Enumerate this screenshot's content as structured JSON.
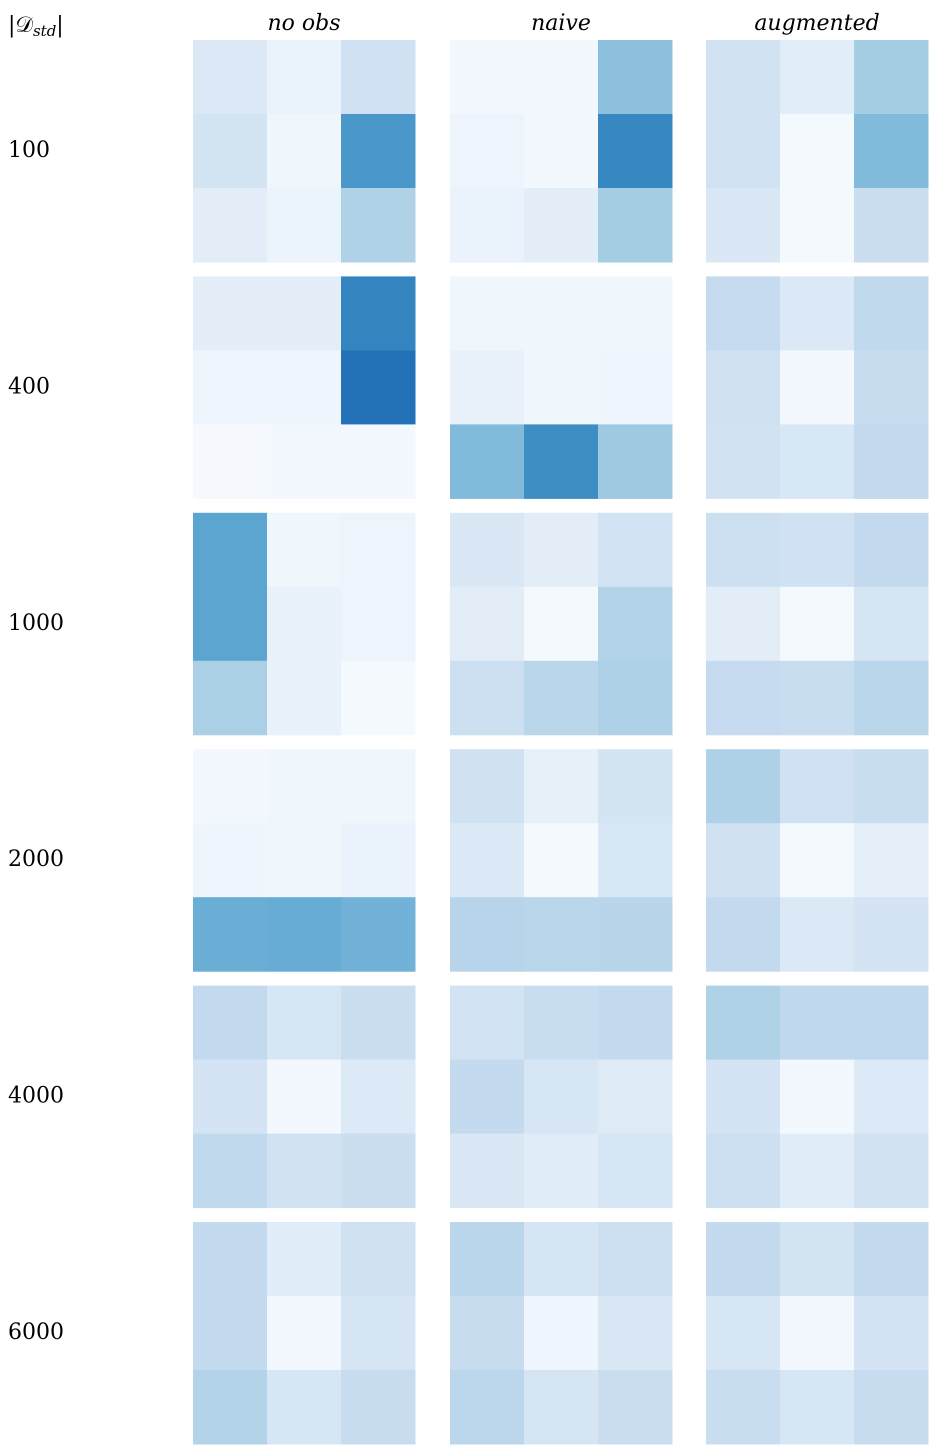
{
  "header": {
    "open": "|𝒟",
    "subscript": "std",
    "close": "|"
  },
  "columns": [
    "no obs",
    "naive",
    "augmented"
  ],
  "rows": [
    {
      "label": "100",
      "panels": [
        [
          [
            "#dce8f5",
            "#eaf2fb",
            "#cfe1f2"
          ],
          [
            "#d3e4f3",
            "#eff6fc",
            "#4a98c9"
          ],
          [
            "#e2edf8",
            "#ebf3fb",
            "#b0d2e7"
          ]
        ],
        [
          [
            "#f2f8fd",
            "#f2f8fd",
            "#8dc0dd"
          ],
          [
            "#edf4fc",
            "#f2f8fd",
            "#3787c0"
          ],
          [
            "#eaf2fb",
            "#e4eef9",
            "#a5cde3"
          ]
        ],
        [
          [
            "#d1e3f3",
            "#e1edf8",
            "#a5cde3"
          ],
          [
            "#d1e3f3",
            "#f4f9fe",
            "#81badb"
          ],
          [
            "#dae8f6",
            "#f4f9fe",
            "#cadef0"
          ]
        ]
      ]
    },
    {
      "label": "400",
      "panels": [
        [
          [
            "#e3eef8",
            "#e3eef8",
            "#3484bf"
          ],
          [
            "#eef5fc",
            "#eef5fc",
            "#2372b8"
          ],
          [
            "#f5f9fe",
            "#f3f8fe",
            "#f3f8fe"
          ]
        ],
        [
          [
            "#eff6fc",
            "#eff6fc",
            "#eff6fc"
          ],
          [
            "#e9f2fa",
            "#eff6fc",
            "#eef5fc"
          ],
          [
            "#81badb",
            "#3e8ec4",
            "#9dc9e1"
          ]
        ],
        [
          [
            "#c6dbef",
            "#dbe9f6",
            "#c1d9ed"
          ],
          [
            "#d0e2f2",
            "#f3f8fe",
            "#c7dcef"
          ],
          [
            "#d1e3f3",
            "#d8e7f5",
            "#c2d9ee"
          ]
        ]
      ]
    },
    {
      "label": "1000",
      "panels": [
        [
          [
            "#5da5d1",
            "#eff6fc",
            "#edf4fc"
          ],
          [
            "#5da5d1",
            "#e9f2fa",
            "#edf4fc"
          ],
          [
            "#abd0e6",
            "#e9f2fa",
            "#f4f9fe"
          ]
        ],
        [
          [
            "#dae8f6",
            "#e2edf8",
            "#d2e3f3"
          ],
          [
            "#e2edf8",
            "#f4f9fe",
            "#b2d2e8"
          ],
          [
            "#cde0f1",
            "#b9d6ea",
            "#aed1e7"
          ]
        ],
        [
          [
            "#cde0f1",
            "#cfe1f2",
            "#c3daee"
          ],
          [
            "#e2edf8",
            "#f4f9fe",
            "#d5e5f4"
          ],
          [
            "#c6dbef",
            "#c9ddf0",
            "#bad6eb"
          ]
        ]
      ]
    },
    {
      "label": "2000",
      "panels": [
        [
          [
            "#f3f8fe",
            "#eff6fc",
            "#eff6fc"
          ],
          [
            "#eef5fc",
            "#eff6fc",
            "#eaf2fb"
          ],
          [
            "#6aaed6",
            "#67acd5",
            "#72b1d8"
          ]
        ],
        [
          [
            "#d0e2f2",
            "#e6f0f9",
            "#d3e4f3"
          ],
          [
            "#dbe9f6",
            "#f4f9fe",
            "#d8e7f5"
          ],
          [
            "#b7d4ea",
            "#bad6eb",
            "#b8d5ea"
          ]
        ],
        [
          [
            "#afd1e7",
            "#cfe1f2",
            "#c9ddf0"
          ],
          [
            "#d0e2f2",
            "#f4f9fe",
            "#e4eff9"
          ],
          [
            "#c3daee",
            "#dbe9f6",
            "#d4e4f4"
          ]
        ]
      ]
    },
    {
      "label": "4000",
      "panels": [
        [
          [
            "#c2d9ee",
            "#d6e6f4",
            "#cadef0"
          ],
          [
            "#d4e4f4",
            "#f2f8fd",
            "#dce9f6"
          ],
          [
            "#c1d9ed",
            "#d1e3f3",
            "#cadef0"
          ]
        ],
        [
          [
            "#d2e3f3",
            "#c9ddf0",
            "#c4daee"
          ],
          [
            "#c4daee",
            "#d6e6f4",
            "#deebf7"
          ],
          [
            "#dae8f6",
            "#e0ecf8",
            "#d6e6f4"
          ]
        ],
        [
          [
            "#b0d2e7",
            "#bfd8ed",
            "#c0d8ed"
          ],
          [
            "#d4e4f4",
            "#f2f8fd",
            "#dce9f6"
          ],
          [
            "#cde0f1",
            "#e0ecf8",
            "#d1e3f3"
          ]
        ]
      ]
    },
    {
      "label": "6000",
      "panels": [
        [
          [
            "#c4daee",
            "#e0ecf8",
            "#d0e2f2"
          ],
          [
            "#c4daee",
            "#f2f8fd",
            "#d5e5f4"
          ],
          [
            "#b3d3e8",
            "#d7e6f5",
            "#c7dcef"
          ]
        ],
        [
          [
            "#bad6eb",
            "#d5e5f4",
            "#cde0f1"
          ],
          [
            "#c8dcf0",
            "#eef5fc",
            "#dae8f6"
          ],
          [
            "#bcd7eb",
            "#d5e5f4",
            "#cadef0"
          ]
        ],
        [
          [
            "#c4daee",
            "#d3e4f3",
            "#c4daee"
          ],
          [
            "#d6e6f4",
            "#f2f8fd",
            "#d4e4f4"
          ],
          [
            "#c9ddf0",
            "#d6e6f4",
            "#c7dcef"
          ]
        ]
      ]
    }
  ]
}
